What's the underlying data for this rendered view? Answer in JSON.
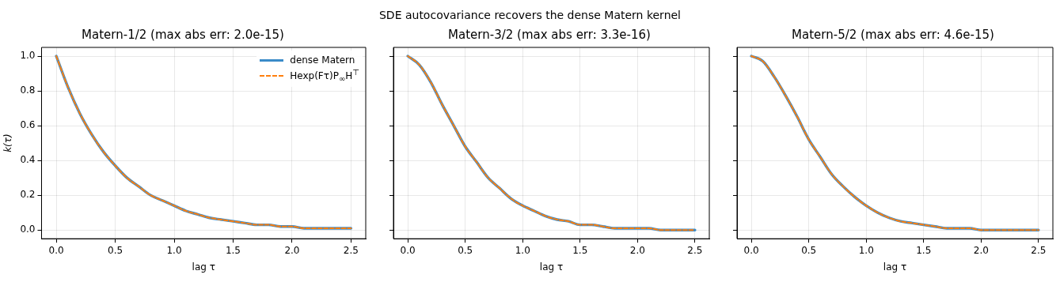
{
  "chart_data": [
    {
      "type": "line",
      "title": "Matern-1/2 (max abs err: 2.0e-15)",
      "xlabel": "lag τ",
      "ylabel": "k(τ)",
      "annotations": [
        "SDE autocovariance recovers the dense Matern kernel"
      ],
      "x": [
        0,
        0.1,
        0.2,
        0.3,
        0.4,
        0.5,
        0.6,
        0.7,
        0.8,
        0.9,
        1.0,
        1.1,
        1.2,
        1.3,
        1.4,
        1.5,
        1.6,
        1.7,
        1.8,
        1.9,
        2.0,
        2.1,
        2.2,
        2.3,
        2.4,
        2.5
      ],
      "series": [
        {
          "name": "dense Matern",
          "color": "#3a8bc8",
          "line_style": "solid",
          "values": [
            1,
            0.82,
            0.67,
            0.55,
            0.45,
            0.37,
            0.3,
            0.25,
            0.2,
            0.17,
            0.14,
            0.11,
            0.09,
            0.07,
            0.06,
            0.05,
            0.04,
            0.03,
            0.03,
            0.02,
            0.02,
            0.01,
            0.01,
            0.01,
            0.01,
            0.01
          ]
        },
        {
          "name": "Hexp(Fτ)P$_{∞}$H$^{⊤}$",
          "color": "#ff7f0e",
          "line_style": "dashed",
          "values": [
            1,
            0.82,
            0.67,
            0.55,
            0.45,
            0.37,
            0.3,
            0.25,
            0.2,
            0.17,
            0.14,
            0.11,
            0.09,
            0.07,
            0.06,
            0.05,
            0.04,
            0.03,
            0.03,
            0.02,
            0.02,
            0.01,
            0.01,
            0.01,
            0.01,
            0.01
          ]
        }
      ],
      "xlim": [
        -0.125,
        2.625
      ],
      "xticks": [
        {
          "value": 0,
          "label": "0.0"
        },
        {
          "value": 0.5,
          "label": "0.5"
        },
        {
          "value": 1,
          "label": "1.0"
        },
        {
          "value": 1.5,
          "label": "1.5"
        },
        {
          "value": 2,
          "label": "2.0"
        },
        {
          "value": 2.5,
          "label": "2.5"
        }
      ],
      "ylim": [
        -0.05,
        1.05
      ],
      "yticks": [
        {
          "value": 0,
          "label": "0.0"
        },
        {
          "value": 0.2,
          "label": "0.2"
        },
        {
          "value": 0.4,
          "label": "0.4"
        },
        {
          "value": 0.6,
          "label": "0.6"
        },
        {
          "value": 0.8,
          "label": "0.8"
        },
        {
          "value": 1,
          "label": "1.0"
        }
      ],
      "grid": true,
      "legend": "top right",
      "marker": "none"
    },
    {
      "type": "line",
      "title": "Matern-3/2 (max abs err: 3.3e-16)",
      "xlabel": "lag τ",
      "x": [
        0,
        0.1,
        0.2,
        0.3,
        0.4,
        0.5,
        0.6,
        0.7,
        0.8,
        0.9,
        1.0,
        1.1,
        1.2,
        1.3,
        1.4,
        1.5,
        1.6,
        1.7,
        1.8,
        1.9,
        2.0,
        2.1,
        2.2,
        2.3,
        2.4,
        2.5
      ],
      "series": [
        {
          "color": "#3a8bc8",
          "line_style": "solid",
          "values": [
            1,
            0.95,
            0.85,
            0.72,
            0.6,
            0.48,
            0.39,
            0.3,
            0.24,
            0.18,
            0.14,
            0.11,
            0.08,
            0.06,
            0.05,
            0.03,
            0.03,
            0.02,
            0.01,
            0.01,
            0.01,
            0.01,
            0,
            0,
            0,
            0
          ]
        },
        {
          "color": "#ff7f0e",
          "line_style": "dashed",
          "values": [
            1,
            0.95,
            0.85,
            0.72,
            0.6,
            0.48,
            0.39,
            0.3,
            0.24,
            0.18,
            0.14,
            0.11,
            0.08,
            0.06,
            0.05,
            0.03,
            0.03,
            0.02,
            0.01,
            0.01,
            0.01,
            0.01,
            0,
            0,
            0,
            0
          ]
        }
      ],
      "xlim": [
        -0.125,
        2.625
      ],
      "xticks": [
        {
          "value": 0,
          "label": "0.0"
        },
        {
          "value": 0.5,
          "label": "0.5"
        },
        {
          "value": 1,
          "label": "1.0"
        },
        {
          "value": 1.5,
          "label": "1.5"
        },
        {
          "value": 2,
          "label": "2.0"
        },
        {
          "value": 2.5,
          "label": "2.5"
        }
      ],
      "ylim": [
        -0.05,
        1.05
      ],
      "yticks": [
        {
          "value": 0,
          "label": null
        },
        {
          "value": 0.2,
          "label": null
        },
        {
          "value": 0.4,
          "label": null
        },
        {
          "value": 0.6,
          "label": null
        },
        {
          "value": 0.8,
          "label": null
        },
        {
          "value": 1,
          "label": null
        }
      ],
      "grid": true,
      "marker": "none",
      "tick_labels": "x"
    },
    {
      "type": "line",
      "title": "Matern-5/2 (max abs err: 4.6e-15)",
      "xlabel": "lag τ",
      "x": [
        0,
        0.1,
        0.2,
        0.3,
        0.4,
        0.5,
        0.6,
        0.7,
        0.8,
        0.9,
        1.0,
        1.1,
        1.2,
        1.3,
        1.4,
        1.5,
        1.6,
        1.7,
        1.8,
        1.9,
        2.0,
        2.1,
        2.2,
        2.3,
        2.4,
        2.5
      ],
      "series": [
        {
          "color": "#3a8bc8",
          "line_style": "solid",
          "values": [
            1,
            0.97,
            0.88,
            0.77,
            0.65,
            0.52,
            0.42,
            0.32,
            0.25,
            0.19,
            0.14,
            0.1,
            0.07,
            0.05,
            0.04,
            0.03,
            0.02,
            0.01,
            0.01,
            0.01,
            0,
            0,
            0,
            0,
            0,
            0
          ]
        },
        {
          "color": "#ff7f0e",
          "line_style": "dashed",
          "values": [
            1,
            0.97,
            0.88,
            0.77,
            0.65,
            0.52,
            0.42,
            0.32,
            0.25,
            0.19,
            0.14,
            0.1,
            0.07,
            0.05,
            0.04,
            0.03,
            0.02,
            0.01,
            0.01,
            0.01,
            0,
            0,
            0,
            0,
            0,
            0
          ]
        }
      ],
      "xlim": [
        -0.125,
        2.625
      ],
      "xticks": [
        {
          "value": 0,
          "label": "0.0"
        },
        {
          "value": 0.5,
          "label": "0.5"
        },
        {
          "value": 1,
          "label": "1.0"
        },
        {
          "value": 1.5,
          "label": "1.5"
        },
        {
          "value": 2,
          "label": "2.0"
        },
        {
          "value": 2.5,
          "label": "2.5"
        }
      ],
      "ylim": [
        -0.05,
        1.05
      ],
      "yticks": [
        {
          "value": 0,
          "label": null
        },
        {
          "value": 0.2,
          "label": null
        },
        {
          "value": 0.4,
          "label": null
        },
        {
          "value": 0.6,
          "label": null
        },
        {
          "value": 0.8,
          "label": null
        },
        {
          "value": 1,
          "label": null
        }
      ],
      "grid": true,
      "marker": "none",
      "tick_labels": "x"
    }
  ]
}
